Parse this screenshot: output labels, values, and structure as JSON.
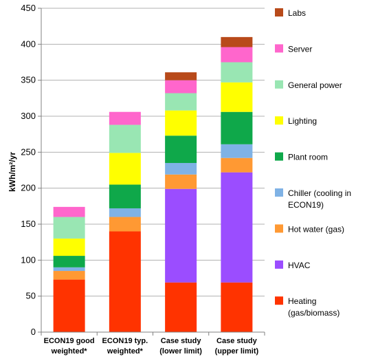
{
  "chart_data": {
    "type": "bar",
    "stacked": true,
    "title": "",
    "xlabel": "",
    "ylabel": "kWh/m²/yr",
    "ylim": [
      0,
      450
    ],
    "yticks": [
      0,
      50,
      100,
      150,
      200,
      250,
      300,
      350,
      400,
      450
    ],
    "grid": true,
    "legend_position": "right",
    "categories": [
      [
        "ECON19 good",
        "weighted*"
      ],
      [
        "ECON19 typ.",
        "weighted*"
      ],
      [
        "Case study",
        "(lower limit)"
      ],
      [
        "Case study",
        "(upper limit)"
      ]
    ],
    "series": [
      {
        "name": [
          "Heating",
          "(gas/biomass)"
        ],
        "color": "#ff3300",
        "values": [
          73,
          140,
          69,
          69
        ]
      },
      {
        "name": [
          "HVAC"
        ],
        "color": "#9b4dff",
        "values": [
          0,
          0,
          130,
          153
        ]
      },
      {
        "name": [
          "Hot water (gas)"
        ],
        "color": "#ff9933",
        "values": [
          12,
          20,
          20,
          20
        ]
      },
      {
        "name": [
          "Chiller (cooling in",
          "ECON19)"
        ],
        "color": "#7fb2e5",
        "values": [
          5,
          12,
          16,
          19
        ]
      },
      {
        "name": [
          "Plant room"
        ],
        "color": "#0fa84a",
        "values": [
          16,
          33,
          38,
          45
        ]
      },
      {
        "name": [
          "Lighting"
        ],
        "color": "#ffff00",
        "values": [
          24,
          44,
          35,
          41
        ]
      },
      {
        "name": [
          "General power"
        ],
        "color": "#99e6b3",
        "values": [
          30,
          39,
          24,
          28
        ]
      },
      {
        "name": [
          "Server"
        ],
        "color": "#ff66cc",
        "values": [
          14,
          18,
          18,
          21
        ]
      },
      {
        "name": [
          "Labs"
        ],
        "color": "#b84a1a",
        "values": [
          0,
          0,
          11,
          14
        ]
      }
    ]
  }
}
